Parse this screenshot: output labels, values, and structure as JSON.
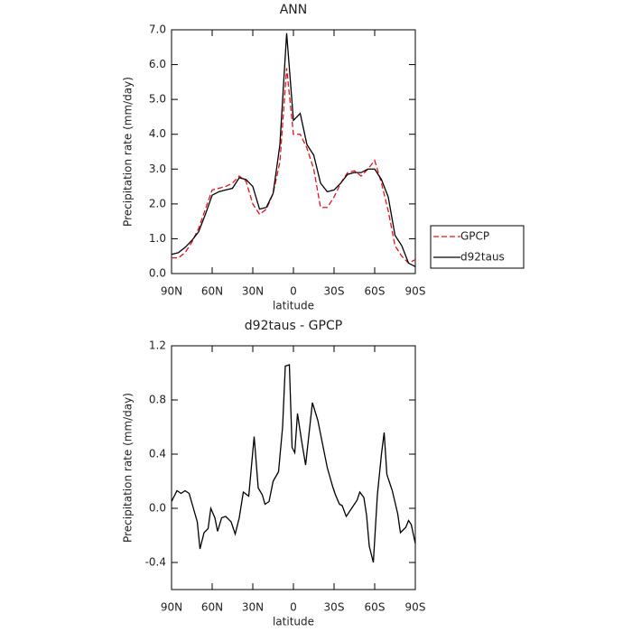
{
  "chart_data": [
    {
      "type": "line",
      "title": "ANN",
      "xlabel": "latitude",
      "ylabel": "Precipitation rate (mm/day)",
      "x": [
        90,
        85,
        80,
        75,
        70,
        65,
        60,
        55,
        50,
        45,
        40,
        35,
        30,
        25,
        20,
        15,
        10,
        5,
        0,
        -5,
        -10,
        -15,
        -20,
        -25,
        -30,
        -35,
        -40,
        -45,
        -50,
        -55,
        -60,
        -65,
        -70,
        -75,
        -80,
        -85,
        -90
      ],
      "series": [
        {
          "name": "GPCP",
          "color": "#e8101a",
          "dash": true,
          "values": [
            0.45,
            0.45,
            0.6,
            0.9,
            1.3,
            1.85,
            2.4,
            2.45,
            2.5,
            2.6,
            2.8,
            2.65,
            2.0,
            1.7,
            1.85,
            2.3,
            3.2,
            5.9,
            4.0,
            4.0,
            3.6,
            3.0,
            1.9,
            1.9,
            2.2,
            2.6,
            2.9,
            2.95,
            2.8,
            3.0,
            3.25,
            2.6,
            1.8,
            0.8,
            0.5,
            0.3,
            0.4
          ]
        },
        {
          "name": "d92taus",
          "color": "#000000",
          "dash": false,
          "values": [
            0.55,
            0.6,
            0.75,
            0.95,
            1.2,
            1.7,
            2.25,
            2.35,
            2.4,
            2.45,
            2.75,
            2.7,
            2.5,
            1.85,
            1.9,
            2.3,
            3.7,
            6.9,
            4.4,
            4.6,
            3.7,
            3.4,
            2.6,
            2.35,
            2.4,
            2.6,
            2.85,
            2.9,
            2.9,
            3.0,
            3.0,
            2.7,
            2.2,
            1.1,
            0.8,
            0.3,
            0.2
          ]
        }
      ],
      "xlim": [
        90,
        -90
      ],
      "xticks": [
        {
          "value": 90,
          "label": "90N"
        },
        {
          "value": 60,
          "label": "60N"
        },
        {
          "value": 30,
          "label": "30N"
        },
        0,
        {
          "value": -30,
          "label": "30S"
        },
        {
          "value": -60,
          "label": "60S"
        },
        {
          "value": -90,
          "label": "90S"
        }
      ],
      "ylim": [
        0,
        7
      ],
      "yticks": [
        {
          "value": 0,
          "label": "0.0"
        },
        {
          "value": 1,
          "label": "1.0"
        },
        {
          "value": 2,
          "label": "2.0"
        },
        {
          "value": 3,
          "label": "3.0"
        },
        {
          "value": 4,
          "label": "4.0"
        },
        {
          "value": 5,
          "label": "5.0"
        },
        {
          "value": 6,
          "label": "6.0"
        },
        {
          "value": 7,
          "label": "7.0"
        }
      ],
      "legend": "right"
    },
    {
      "type": "line",
      "title": "d92taus - GPCP",
      "xlabel": "latitude",
      "ylabel": "Precipitation rate (mm/day)",
      "x": [
        90,
        86,
        83,
        80,
        77,
        71,
        69,
        66,
        63,
        61,
        58,
        56,
        53,
        50,
        46,
        43,
        40,
        37,
        33,
        29,
        26,
        23,
        21,
        18,
        15,
        11,
        8,
        6,
        3,
        1,
        -1,
        -3,
        -6,
        -9,
        -14,
        -18,
        -25,
        -29,
        -31,
        -34,
        -36,
        -39,
        -43,
        -47,
        -49,
        -52,
        -54,
        -56,
        -59,
        -62,
        -65,
        -67,
        -69,
        -73,
        -77,
        -79,
        -83,
        -85,
        -87,
        -90
      ],
      "series": [
        {
          "color": "#000000",
          "values": [
            0.05,
            0.13,
            0.11,
            0.13,
            0.11,
            -0.1,
            -0.3,
            -0.18,
            -0.15,
            0.0,
            -0.07,
            -0.17,
            -0.07,
            -0.06,
            -0.1,
            -0.19,
            -0.07,
            0.12,
            0.09,
            0.53,
            0.15,
            0.1,
            0.03,
            0.05,
            0.2,
            0.27,
            0.6,
            1.05,
            1.06,
            0.45,
            0.41,
            0.7,
            0.5,
            0.32,
            0.78,
            0.65,
            0.3,
            0.16,
            0.1,
            0.03,
            0.02,
            -0.06,
            0.0,
            0.06,
            0.12,
            0.08,
            -0.05,
            -0.28,
            -0.4,
            0.1,
            0.4,
            0.56,
            0.25,
            0.13,
            -0.04,
            -0.18,
            -0.14,
            -0.09,
            -0.12,
            -0.26
          ]
        }
      ],
      "xlim": [
        90,
        -90
      ],
      "xticks": [
        {
          "value": 90,
          "label": "90N"
        },
        {
          "value": 60,
          "label": "60N"
        },
        {
          "value": 30,
          "label": "30N"
        },
        0,
        {
          "value": -30,
          "label": "30S"
        },
        {
          "value": -60,
          "label": "60S"
        },
        {
          "value": -90,
          "label": "90S"
        }
      ],
      "ylim": [
        -0.6,
        1.2
      ],
      "yticks": [
        -0.4,
        {
          "value": 0,
          "label": "0.0"
        },
        0.4,
        0.8,
        1.2
      ]
    }
  ]
}
